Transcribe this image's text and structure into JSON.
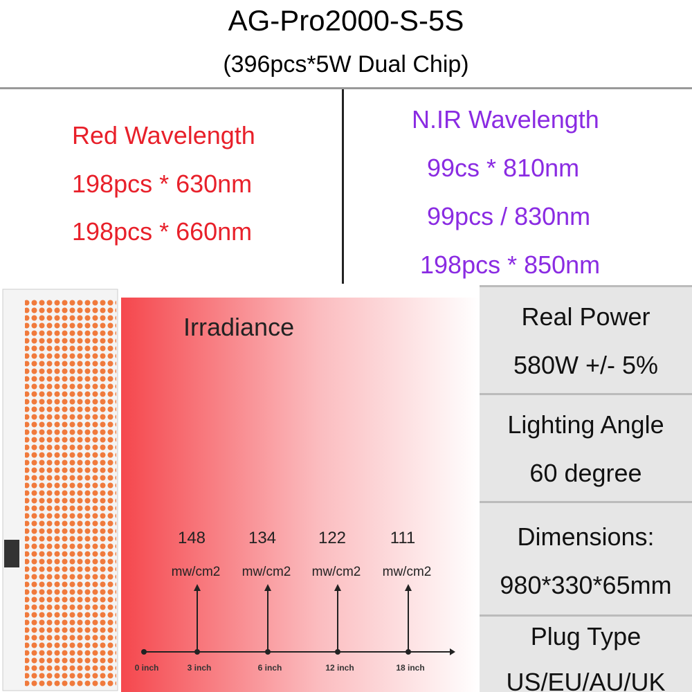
{
  "header": {
    "title": "AG-Pro2000-S-5S",
    "subtitle": "(396pcs*5W Dual Chip)"
  },
  "red": {
    "title": "Red Wavelength",
    "lines": [
      "198pcs * 630nm",
      "198pcs * 660nm"
    ]
  },
  "nir": {
    "title": "N.IR Wavelength",
    "lines": [
      "99cs * 810nm",
      "99pcs / 830nm",
      "198pcs * 850nm"
    ]
  },
  "irradiance": {
    "title": "Irradiance",
    "origin": "0 inch",
    "points": [
      {
        "value": "148",
        "unit": "mw/cm2",
        "distance": "3 inch"
      },
      {
        "value": "134",
        "unit": "mw/cm2",
        "distance": "6 inch"
      },
      {
        "value": "122",
        "unit": "mw/cm2",
        "distance": "12 inch"
      },
      {
        "value": "111",
        "unit": "mw/cm2",
        "distance": "18 inch"
      }
    ]
  },
  "specs": [
    {
      "label": "Real Power",
      "value": "580W +/- 5%"
    },
    {
      "label": "Lighting Angle",
      "value": "60 degree"
    },
    {
      "label": "Dimensions:",
      "value": "980*330*65mm"
    },
    {
      "label": "Plug Type",
      "value": "US/EU/AU/UK"
    }
  ]
}
